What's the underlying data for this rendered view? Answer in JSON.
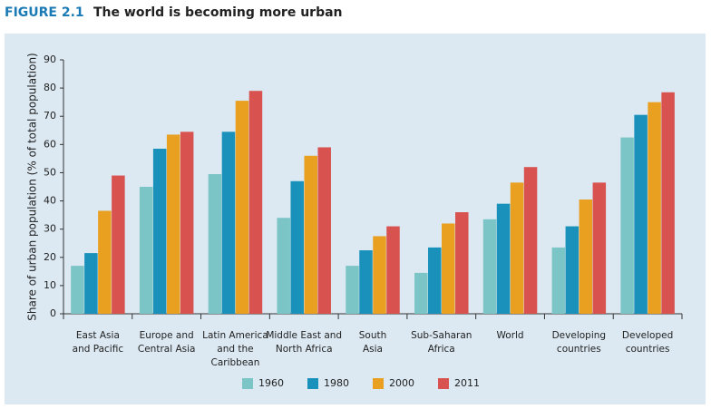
{
  "chart_data": {
    "type": "bar",
    "figure_label": "FIGURE 2.1",
    "title": "The world is becoming more urban",
    "y_label": "Share of urban population (% of total population)",
    "categories": [
      "East Asia\nand Pacific",
      "Europe and\nCentral Asia",
      "Latin America\nand the\nCaribbean",
      "Middle East and\nNorth Africa",
      "South\nAsia",
      "Sub-Saharan\nAfrica",
      "World",
      "Developing\ncountries",
      "Developed\ncountries"
    ],
    "series": [
      {
        "name": "1960",
        "color": "#7cc5c6",
        "values": [
          17,
          45,
          49.5,
          34,
          17,
          14.5,
          33.5,
          23.5,
          62.5
        ]
      },
      {
        "name": "1980",
        "color": "#1991bb",
        "values": [
          21.5,
          58.5,
          64.5,
          47,
          22.5,
          23.5,
          39,
          31,
          70.5
        ]
      },
      {
        "name": "2000",
        "color": "#e9a021",
        "values": [
          36.5,
          63.5,
          75.5,
          56,
          27.5,
          32,
          46.5,
          40.5,
          75
        ]
      },
      {
        "name": "2011",
        "color": "#d8524f",
        "values": [
          49,
          64.5,
          79,
          59,
          31,
          36,
          52,
          46.5,
          78.5
        ]
      }
    ],
    "ylim": [
      0,
      90
    ],
    "yticks": [
      0,
      10,
      20,
      30,
      40,
      50,
      60,
      70,
      80,
      90
    ],
    "grid": false,
    "legend": "bottom"
  }
}
